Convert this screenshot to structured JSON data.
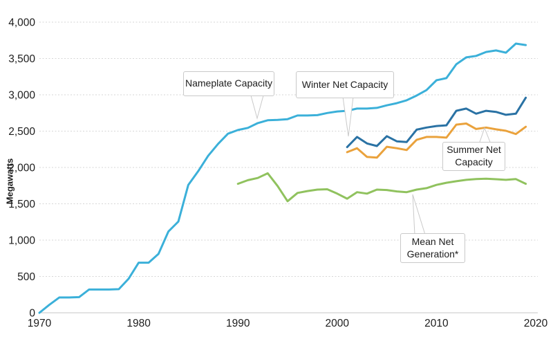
{
  "chart_data": {
    "type": "line",
    "title": "",
    "xlabel": "",
    "ylabel": "Megawatts",
    "xlim": [
      1970,
      2020
    ],
    "ylim": [
      0,
      4000
    ],
    "grid": true,
    "legend_position": "inline-callouts",
    "x_tick_labels": [
      "1970",
      "1980",
      "1990",
      "2000",
      "2010",
      "2020"
    ],
    "y_tick_labels": [
      "0",
      "500",
      "1,000",
      "1,500",
      "2,000",
      "2,500",
      "3,000",
      "3,500",
      "4,000"
    ],
    "y_tick_step": 500,
    "annotations": {
      "nameplate": "Nameplate Capacity",
      "winter": "Winter Net Capacity",
      "summer": [
        "Summer Net",
        "Capacity"
      ],
      "mean": [
        "Mean Net",
        "Generation*"
      ]
    },
    "series": [
      {
        "name": "Nameplate Capacity",
        "color": "#3BB0D9",
        "start_year": 1970,
        "values": [
          0,
          110,
          210,
          210,
          215,
          320,
          320,
          320,
          325,
          470,
          690,
          690,
          810,
          1120,
          1255,
          1760,
          1950,
          2160,
          2325,
          2465,
          2515,
          2545,
          2610,
          2650,
          2655,
          2665,
          2715,
          2715,
          2720,
          2750,
          2770,
          2780,
          2810,
          2810,
          2820,
          2855,
          2885,
          2925,
          2990,
          3065,
          3200,
          3230,
          3420,
          3515,
          3535,
          3590,
          3610,
          3580,
          3705,
          3685
        ]
      },
      {
        "name": "Winter Net Capacity",
        "color": "#2A72A4",
        "start_year": 2001,
        "values": [
          2280,
          2420,
          2330,
          2295,
          2430,
          2360,
          2350,
          2520,
          2550,
          2570,
          2580,
          2780,
          2810,
          2740,
          2780,
          2765,
          2725,
          2740,
          2960
        ]
      },
      {
        "name": "Summer Net Capacity",
        "color": "#EAA23C",
        "start_year": 2001,
        "values": [
          2210,
          2265,
          2145,
          2135,
          2285,
          2265,
          2240,
          2380,
          2420,
          2420,
          2410,
          2590,
          2605,
          2530,
          2550,
          2525,
          2505,
          2460,
          2560
        ]
      },
      {
        "name": "Mean Net Generation*",
        "color": "#90C25E",
        "start_year": 1990,
        "values": [
          1775,
          1825,
          1855,
          1920,
          1745,
          1535,
          1650,
          1675,
          1695,
          1700,
          1640,
          1570,
          1660,
          1640,
          1695,
          1690,
          1670,
          1660,
          1695,
          1715,
          1760,
          1790,
          1810,
          1830,
          1840,
          1845,
          1838,
          1830,
          1840,
          1775
        ]
      }
    ]
  }
}
